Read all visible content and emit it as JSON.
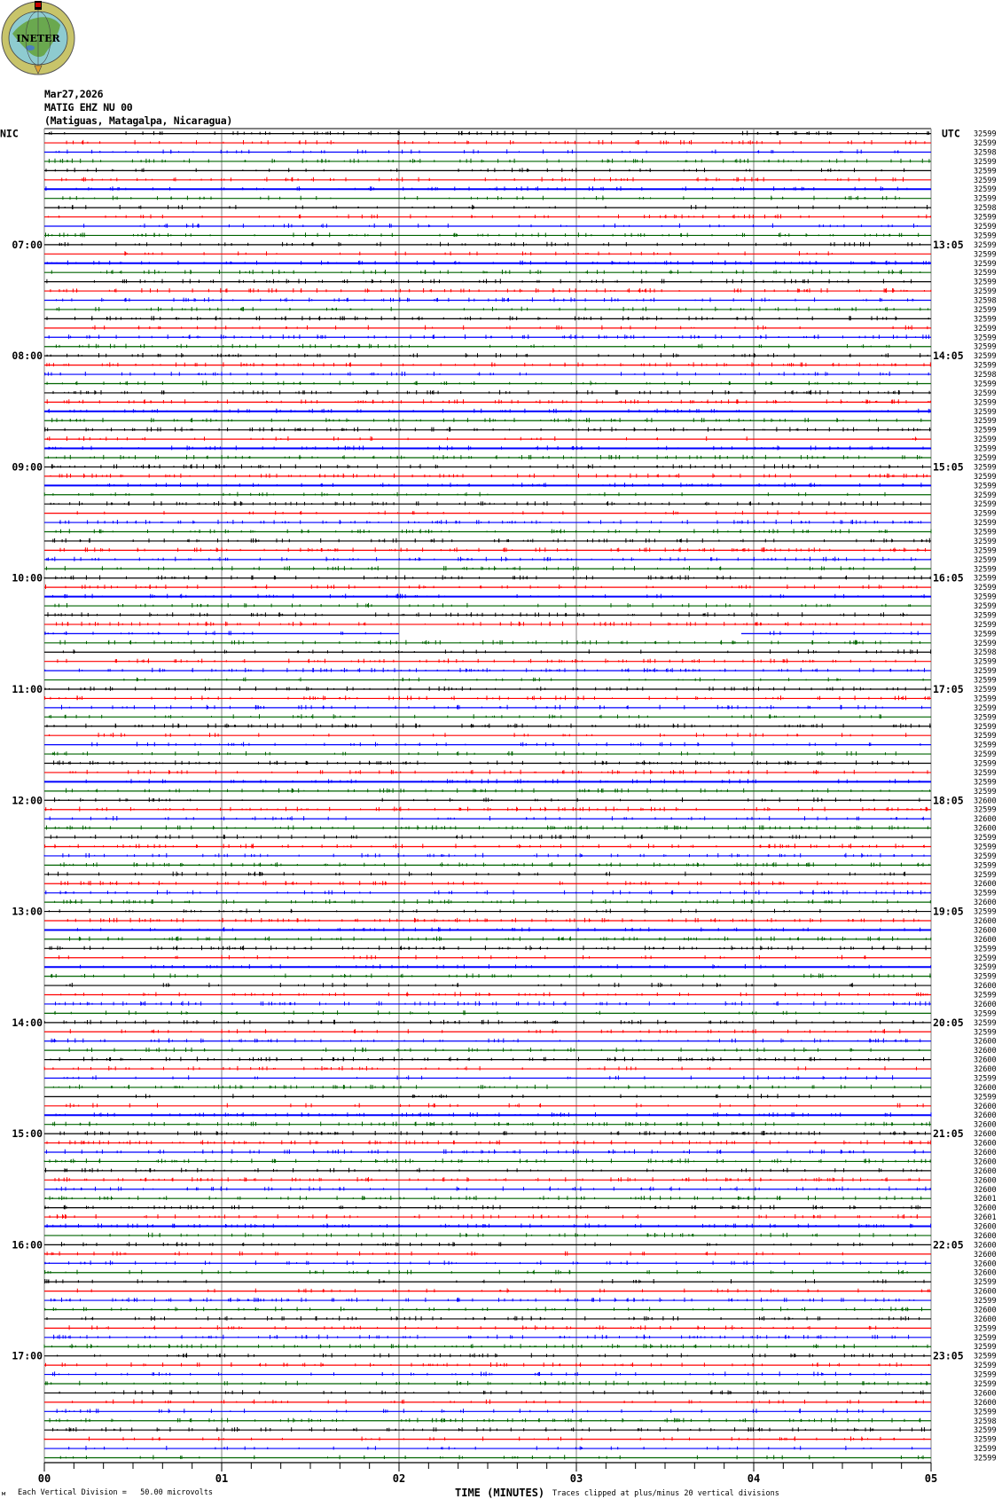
{
  "logo": {
    "text": "INETER"
  },
  "header": {
    "date": "Mar27,2026",
    "station": "MATIG EHZ NU 00",
    "location": "(Matiguas, Matagalpa, Nicaragua)"
  },
  "colors": {
    "trace_cycle": [
      "#000000",
      "#ff0000",
      "#0000ff",
      "#006400"
    ],
    "grid": "#808080"
  },
  "chart_data": {
    "type": "line",
    "subtype": "helicorder",
    "left_timezone_label": "NIC",
    "right_timezone_label": "UTC",
    "minutes_per_row": 5,
    "left_hour_labels": [
      "07:00",
      "08:00",
      "09:00",
      "10:00",
      "11:00",
      "12:00",
      "13:00",
      "14:00",
      "15:00",
      "16:00",
      "17:00"
    ],
    "right_hour_labels": [
      "13:05",
      "14:05",
      "15:05",
      "16:05",
      "17:05",
      "18:05",
      "19:05",
      "20:05",
      "21:05",
      "22:05",
      "23:05"
    ],
    "xlabel": "TIME (MINUTES)",
    "x_ticks": [
      "00",
      "01",
      "02",
      "03",
      "04",
      "05"
    ],
    "xlim": [
      0,
      5
    ],
    "grid": "vertical at each minute",
    "row_values": [
      32599,
      32599,
      32598,
      32599,
      32599,
      32599,
      32599,
      32599,
      32598,
      32599,
      32599,
      32599,
      32599,
      32599,
      32599,
      32599,
      32599,
      32599,
      32598,
      32599,
      32599,
      32599,
      32599,
      32599,
      32599,
      32599,
      32598,
      32599,
      32599,
      32599,
      32599,
      32599,
      32599,
      32599,
      32599,
      32599,
      32599,
      32599,
      32599,
      32599,
      32599,
      32599,
      32599,
      32599,
      32599,
      32599,
      32599,
      32599,
      32599,
      32599,
      32599,
      32599,
      32599,
      32599,
      32599,
      32599,
      32598,
      32599,
      32599,
      32599,
      32599,
      32599,
      32599,
      32599,
      32599,
      32599,
      32599,
      32599,
      32599,
      32599,
      32599,
      32599,
      32600,
      32599,
      32600,
      32600,
      32599,
      32599,
      32599,
      32599,
      32599,
      32600,
      32599,
      32600,
      32599,
      32600,
      32600,
      32600,
      32599,
      32599,
      32599,
      32599,
      32600,
      32599,
      32600,
      32599,
      32599,
      32599,
      32600,
      32600,
      32600,
      32600,
      32599,
      32600,
      32599,
      32600,
      32600,
      32600,
      32600,
      32600,
      32600,
      32600,
      32600,
      32600,
      32600,
      32601,
      32600,
      32601,
      32600,
      32600,
      32600,
      32600,
      32600,
      32600,
      32599,
      32600,
      32599,
      32600,
      32600,
      32599,
      32599,
      32599,
      32599,
      32599,
      32599,
      32599,
      32600,
      32600,
      32599,
      32598,
      32599,
      32599,
      32599,
      32599
    ],
    "data_gaps": [
      {
        "row_start_nic": "10:30",
        "from_minute": 2.0,
        "to_minute": 3.93
      }
    ],
    "scale_note": "Each Vertical Division =   50.00 microvolts",
    "clip_note": "Traces clipped at plus/minus 20 vertical divisions"
  }
}
